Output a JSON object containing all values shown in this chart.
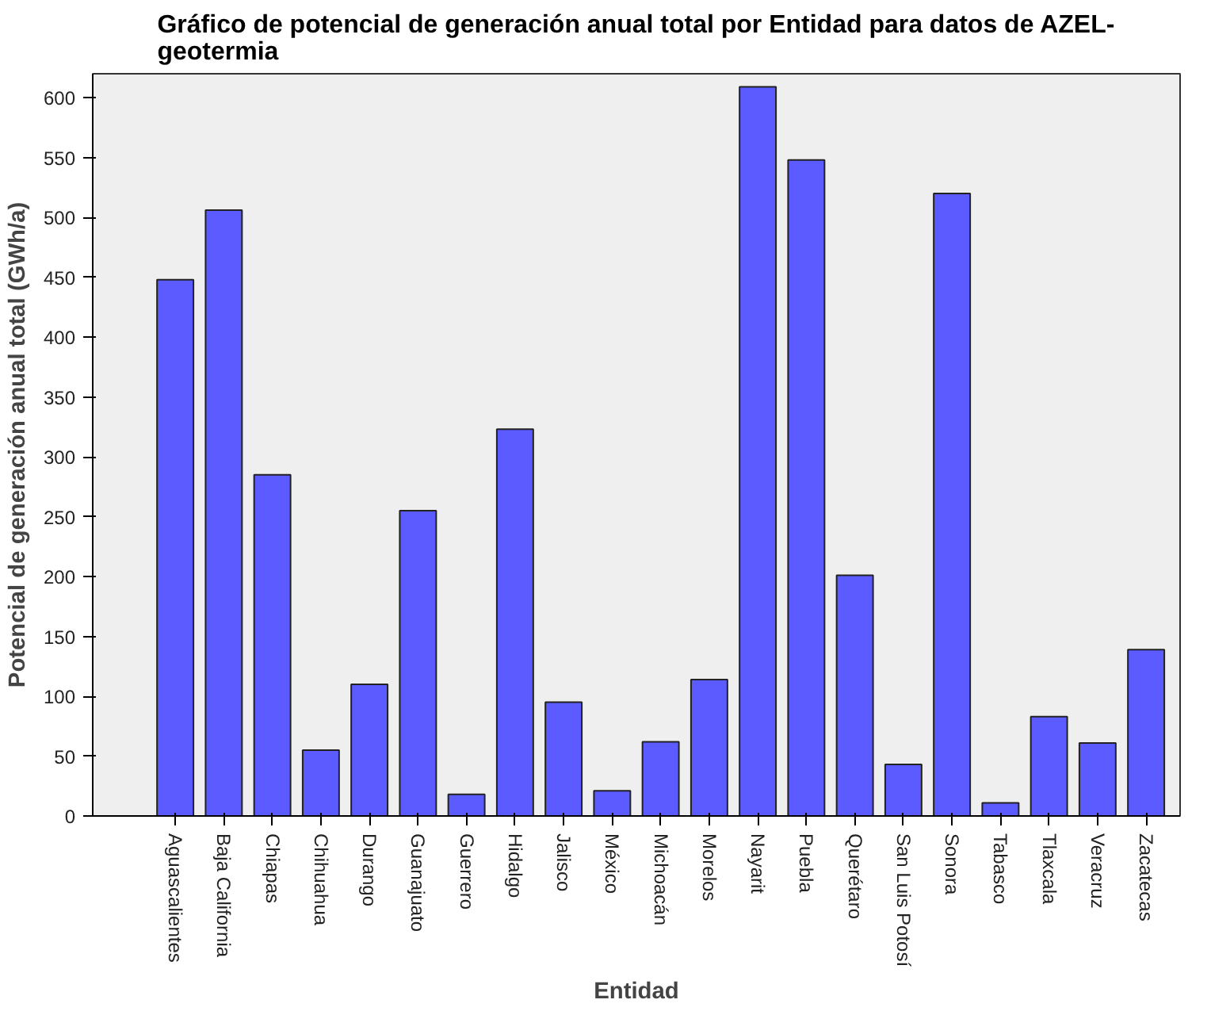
{
  "chart_data": {
    "type": "bar",
    "title": "Gráfico de potencial de generación anual total por Entidad para datos de AZEL-geotermia",
    "xlabel": "Entidad",
    "ylabel": "Potencial de generación anual total (GWh/a)",
    "categories": [
      "Aguascalientes",
      "Baja California",
      "Chiapas",
      "Chihuahua",
      "Durango",
      "Guanajuato",
      "Guerrero",
      "Hidalgo",
      "Jalisco",
      "México",
      "Michoacán",
      "Morelos",
      "Nayarit",
      "Puebla",
      "Querétaro",
      "San Luis Potosí",
      "Sonora",
      "Tabasco",
      "Tlaxcala",
      "Veracruz",
      "Zacatecas"
    ],
    "values": [
      448,
      506,
      285,
      55,
      110,
      255,
      18,
      323,
      95,
      21,
      62,
      114,
      609,
      548,
      201,
      43,
      520,
      11,
      83,
      61,
      139
    ],
    "color": "#5b5bff",
    "ylim": [
      0,
      620
    ],
    "yticks": [
      0,
      50,
      100,
      150,
      200,
      250,
      300,
      350,
      400,
      450,
      500,
      550,
      600
    ],
    "grid": false
  }
}
